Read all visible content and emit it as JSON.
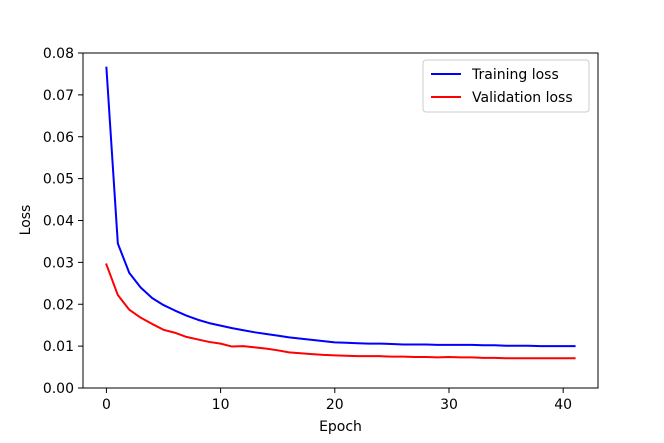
{
  "chart_data": {
    "type": "line",
    "title": "",
    "xlabel": "Epoch",
    "ylabel": "Loss",
    "xlim": [
      -2.05,
      43.05
    ],
    "ylim": [
      0,
      0.08
    ],
    "xticks": [
      0,
      10,
      20,
      30,
      40
    ],
    "xtick_labels": [
      "0",
      "10",
      "20",
      "30",
      "40"
    ],
    "yticks": [
      0,
      0.01,
      0.02,
      0.03,
      0.04,
      0.05,
      0.06,
      0.07,
      0.08
    ],
    "ytick_labels": [
      "0.00",
      "0.01",
      "0.02",
      "0.03",
      "0.04",
      "0.05",
      "0.06",
      "0.07",
      "0.08"
    ],
    "grid": false,
    "legend_position": "top-right",
    "x": [
      0,
      1,
      2,
      3,
      4,
      5,
      6,
      7,
      8,
      9,
      10,
      11,
      12,
      13,
      14,
      15,
      16,
      17,
      18,
      19,
      20,
      21,
      22,
      23,
      24,
      25,
      26,
      27,
      28,
      29,
      30,
      31,
      32,
      33,
      34,
      35,
      36,
      37,
      38,
      39,
      40,
      41
    ],
    "series": [
      {
        "name": "Training loss",
        "color": "#0000ff",
        "values": [
          0.0765,
          0.0345,
          0.0275,
          0.024,
          0.0215,
          0.0198,
          0.0185,
          0.0173,
          0.0163,
          0.0155,
          0.0149,
          0.0143,
          0.0138,
          0.0133,
          0.0129,
          0.0125,
          0.0121,
          0.0118,
          0.0115,
          0.0112,
          0.0109,
          0.0108,
          0.0107,
          0.0106,
          0.0106,
          0.0105,
          0.0104,
          0.0104,
          0.0104,
          0.0103,
          0.0103,
          0.0103,
          0.0103,
          0.0102,
          0.0102,
          0.0101,
          0.0101,
          0.0101,
          0.01,
          0.01,
          0.01,
          0.01
        ]
      },
      {
        "name": "Validation loss",
        "color": "#ff0000",
        "values": [
          0.0295,
          0.0222,
          0.0187,
          0.0168,
          0.0153,
          0.0139,
          0.0132,
          0.0122,
          0.0116,
          0.011,
          0.0106,
          0.0099,
          0.01,
          0.0097,
          0.0094,
          0.009,
          0.0085,
          0.0083,
          0.0081,
          0.0079,
          0.0078,
          0.0077,
          0.0076,
          0.0076,
          0.0076,
          0.0075,
          0.0075,
          0.0074,
          0.0074,
          0.0073,
          0.0074,
          0.0073,
          0.0073,
          0.0072,
          0.0072,
          0.0071,
          0.0071,
          0.0071,
          0.0071,
          0.0071,
          0.0071,
          0.0071
        ]
      }
    ]
  }
}
